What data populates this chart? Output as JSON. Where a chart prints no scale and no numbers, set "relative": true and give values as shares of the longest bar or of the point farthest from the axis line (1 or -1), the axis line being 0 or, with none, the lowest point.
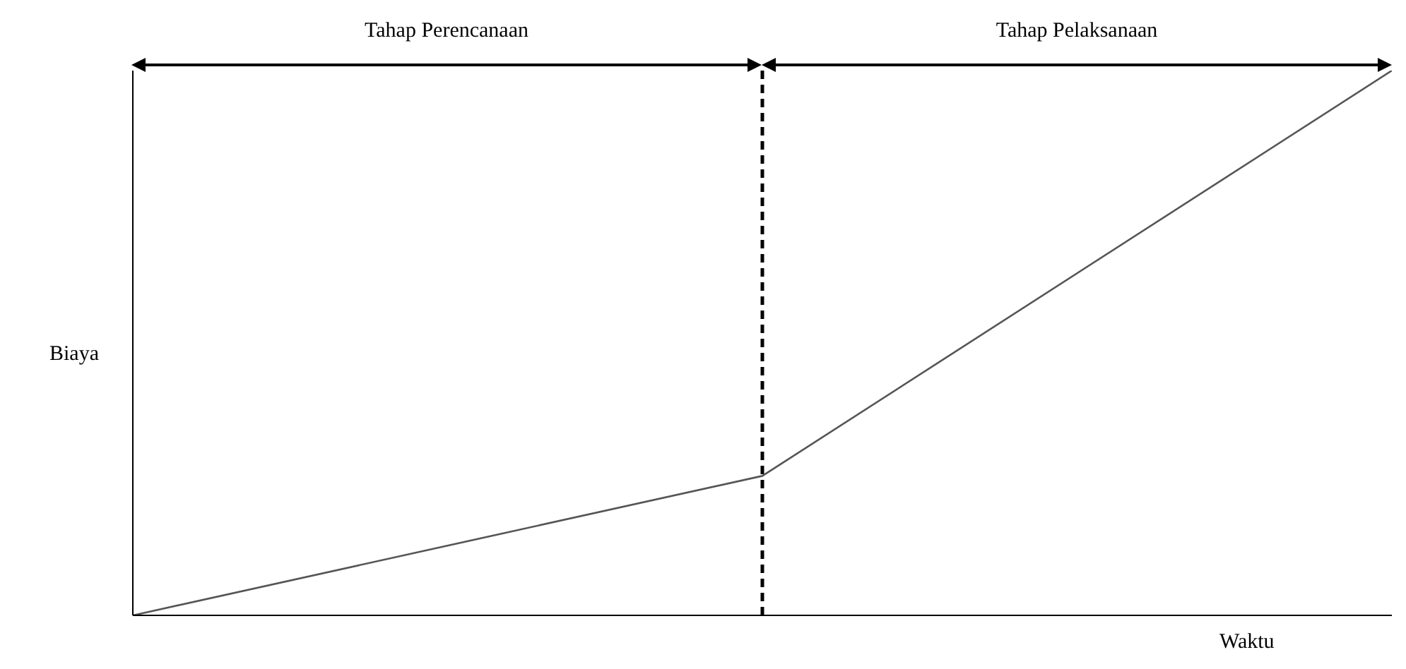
{
  "chart_data": {
    "type": "line",
    "relative": true,
    "xlabel": "Waktu",
    "ylabel": "Biaya",
    "categories": [
      null,
      null,
      null
    ],
    "series": [
      {
        "color": "#555555",
        "values": [
          0,
          0.256,
          1
        ]
      }
    ],
    "annotations": [
      "Tahap Perencanaan",
      "Tahap Pelaksanaan"
    ],
    "marker": "none",
    "line_style": "solid",
    "grid": false
  }
}
